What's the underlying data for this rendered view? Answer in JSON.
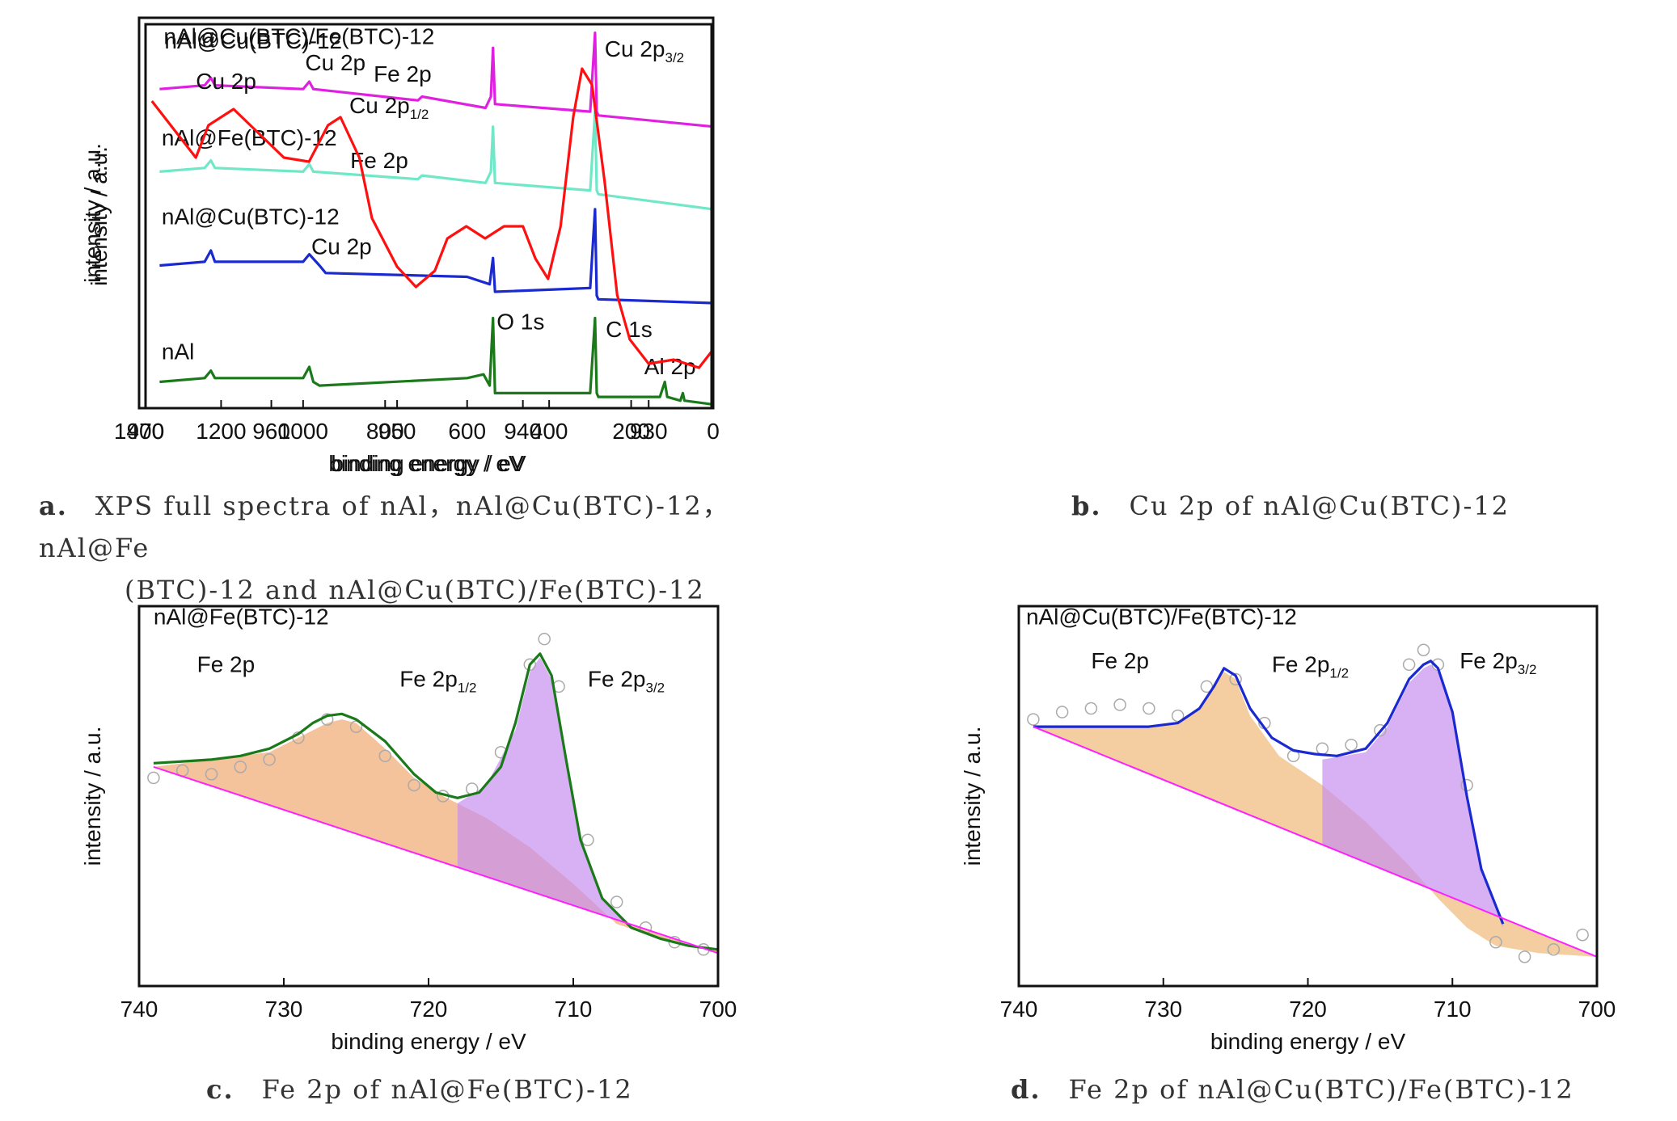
{
  "panels": {
    "a": {
      "letter": "a.",
      "caption_line1": "XPS full spectra of nAl，nAl@Cu(BTC)-12，nAl@Fe",
      "caption_line2": "(BTC)-12 and nAl@Cu(BTC)/Fe(BTC)-12"
    },
    "b": {
      "letter": "b.",
      "caption": "Cu 2p of nAl@Cu(BTC)-12"
    },
    "c": {
      "letter": "c.",
      "caption": "Fe 2p of nAl@Fe(BTC)-12"
    },
    "d": {
      "letter": "d.",
      "caption": "Fe 2p of nAl@Cu(BTC)/Fe(BTC)-12"
    }
  },
  "chart_data": [
    {
      "id": "a",
      "type": "line",
      "xlabel": "binding energy / eV",
      "ylabel": "intensity / a.u.",
      "xlim": [
        1400,
        0
      ],
      "xticks": [
        1400,
        1200,
        1000,
        800,
        600,
        400,
        200,
        0
      ],
      "y_ticks_shown": false,
      "series": [
        {
          "name": "nAl@Cu(BTC)/Fe(BTC)-12",
          "color": "#e020e0",
          "x": [
            1350,
            1240,
            1225,
            1215,
            1000,
            985,
            975,
            720,
            710,
            555,
            542,
            537,
            532,
            300,
            288,
            284,
            280,
            0
          ],
          "y": [
            0.85,
            0.86,
            0.88,
            0.86,
            0.85,
            0.87,
            0.85,
            0.82,
            0.83,
            0.8,
            0.83,
            0.96,
            0.81,
            0.79,
            1.0,
            0.79,
            0.78,
            0.75
          ]
        },
        {
          "name": "nAl@Fe(BTC)-12",
          "color": "#70e8c8",
          "x": [
            1350,
            1240,
            1225,
            1215,
            1000,
            985,
            975,
            720,
            710,
            555,
            542,
            537,
            532,
            300,
            288,
            284,
            280,
            0
          ],
          "y": [
            0.63,
            0.64,
            0.66,
            0.64,
            0.63,
            0.65,
            0.63,
            0.61,
            0.62,
            0.6,
            0.63,
            0.75,
            0.6,
            0.58,
            0.79,
            0.58,
            0.57,
            0.53
          ]
        },
        {
          "name": "nAl@Cu(BTC)-12",
          "color": "#1a2ad0",
          "x": [
            1350,
            1240,
            1225,
            1215,
            1000,
            985,
            960,
            945,
            600,
            545,
            537,
            532,
            300,
            288,
            284,
            280,
            0
          ],
          "y": [
            0.38,
            0.39,
            0.42,
            0.39,
            0.39,
            0.41,
            0.38,
            0.36,
            0.35,
            0.33,
            0.4,
            0.31,
            0.32,
            0.53,
            0.3,
            0.29,
            0.28
          ]
        },
        {
          "name": "nAl",
          "color": "#1a7a1a",
          "x": [
            1350,
            1240,
            1225,
            1215,
            1000,
            985,
            975,
            960,
            600,
            560,
            545,
            537,
            532,
            300,
            288,
            284,
            280,
            130,
            118,
            112,
            80,
            74,
            70,
            0
          ],
          "y": [
            0.07,
            0.08,
            0.1,
            0.08,
            0.08,
            0.11,
            0.07,
            0.06,
            0.08,
            0.09,
            0.06,
            0.24,
            0.04,
            0.04,
            0.24,
            0.04,
            0.03,
            0.03,
            0.07,
            0.03,
            0.02,
            0.04,
            0.02,
            0.01
          ]
        }
      ],
      "annotations": [
        {
          "text": "nAl@Cu(BTC)/Fe(BTC)-12",
          "x": 1340,
          "y": 0.97
        },
        {
          "text": "Cu 2p",
          "x": 995,
          "y": 0.9
        },
        {
          "text": "Fe 2p",
          "x": 828,
          "y": 0.87
        },
        {
          "text": "nAl@Fe(BTC)-12",
          "x": 1345,
          "y": 0.7
        },
        {
          "text": "Fe 2p",
          "x": 885,
          "y": 0.64
        },
        {
          "text": "nAl@Cu(BTC)-12",
          "x": 1345,
          "y": 0.49
        },
        {
          "text": "Cu 2p",
          "x": 980,
          "y": 0.41
        },
        {
          "text": "nAl",
          "x": 1345,
          "y": 0.13
        },
        {
          "text": "O 1s",
          "x": 528,
          "y": 0.21
        },
        {
          "text": "C 1s",
          "x": 262,
          "y": 0.19
        },
        {
          "text": "Al 2p",
          "x": 168,
          "y": 0.09
        }
      ]
    },
    {
      "id": "b",
      "type": "line",
      "xlabel": "binding energy / eV",
      "ylabel": "intensity / a.u.",
      "xlim": [
        970,
        925
      ],
      "xticks": [
        970,
        960,
        950,
        940,
        930
      ],
      "y_ticks_shown": false,
      "series": [
        {
          "name": "nAl@Cu(BTC)-12",
          "color": "#ff1010",
          "x": [
            969.5,
            968,
            966,
            965,
            963,
            961,
            959,
            957,
            955.5,
            954.5,
            953,
            952,
            950,
            948.5,
            947,
            946,
            944.5,
            943,
            941.5,
            940,
            939,
            938,
            937,
            936,
            935.3,
            934.5,
            933.5,
            932.5,
            931.5,
            930,
            928,
            926,
            925
          ],
          "y": [
            0.86,
            0.8,
            0.72,
            0.8,
            0.84,
            0.78,
            0.72,
            0.71,
            0.8,
            0.82,
            0.72,
            0.57,
            0.45,
            0.4,
            0.44,
            0.52,
            0.55,
            0.52,
            0.55,
            0.55,
            0.47,
            0.42,
            0.55,
            0.82,
            0.94,
            0.9,
            0.66,
            0.38,
            0.27,
            0.21,
            0.22,
            0.2,
            0.24
          ]
        }
      ],
      "annotations": [
        {
          "text": "nAl@Cu(BTC)-12",
          "x": 968.5,
          "y": 0.99
        },
        {
          "text": "Cu 2p",
          "x": 966,
          "y": 0.89
        },
        {
          "text": "Cu 2p",
          "sub": "1/2",
          "x": 953.8,
          "y": 0.83
        },
        {
          "text": "Cu 2p",
          "sub": "3/2",
          "x": 933.5,
          "y": 0.97
        }
      ]
    },
    {
      "id": "c",
      "type": "scatter",
      "xlabel": "binding energy / eV",
      "ylabel": "intensity / a.u.",
      "xlim": [
        740,
        700
      ],
      "xticks": [
        740,
        730,
        720,
        710,
        700
      ],
      "y_ticks_shown": false,
      "series": [
        {
          "name": "raw",
          "color": "#aaaaaa",
          "x": [
            739,
            737,
            735,
            733,
            731,
            729,
            727,
            725,
            723,
            721,
            719,
            717,
            715,
            713,
            712,
            711,
            709,
            707,
            705,
            703,
            701
          ],
          "y": [
            0.57,
            0.59,
            0.58,
            0.6,
            0.62,
            0.68,
            0.73,
            0.71,
            0.63,
            0.55,
            0.52,
            0.54,
            0.64,
            0.88,
            0.95,
            0.82,
            0.4,
            0.23,
            0.16,
            0.12,
            0.1
          ]
        },
        {
          "name": "fit",
          "color": "#1a7a1a",
          "x": [
            739,
            737,
            735,
            733,
            731,
            729,
            728,
            727,
            726,
            725,
            723,
            721,
            719.5,
            718,
            716.5,
            715,
            714,
            713,
            712.3,
            711.5,
            710.5,
            709.5,
            708,
            706,
            704,
            702,
            700
          ],
          "y": [
            0.61,
            0.615,
            0.62,
            0.63,
            0.65,
            0.69,
            0.72,
            0.74,
            0.745,
            0.73,
            0.67,
            0.58,
            0.53,
            0.515,
            0.53,
            0.6,
            0.72,
            0.88,
            0.91,
            0.85,
            0.62,
            0.4,
            0.24,
            0.16,
            0.13,
            0.11,
            0.1
          ]
        },
        {
          "name": "baseline",
          "color": "#ff20ff",
          "x": [
            739,
            700
          ],
          "y": [
            0.6,
            0.09
          ]
        },
        {
          "name": "Fe 2p1/2",
          "color": "#f0a870",
          "x": [
            739,
            731,
            729,
            727,
            726,
            725,
            723,
            721,
            719,
            716,
            713,
            710,
            707,
            704,
            700
          ],
          "y": [
            0.6,
            0.64,
            0.68,
            0.72,
            0.73,
            0.72,
            0.65,
            0.57,
            0.52,
            0.46,
            0.38,
            0.28,
            0.17,
            0.13,
            0.1
          ]
        },
        {
          "name": "Fe 2p3/2",
          "color": "#c890f0",
          "x": [
            718,
            716,
            714,
            713,
            712.3,
            711.5,
            710.5,
            709.5,
            708,
            706
          ],
          "y": [
            0.5,
            0.55,
            0.7,
            0.86,
            0.9,
            0.84,
            0.61,
            0.4,
            0.24,
            0.16
          ]
        }
      ],
      "annotations": [
        {
          "text": "nAl@Fe(BTC)-12",
          "x": 739,
          "y": 0.99
        },
        {
          "text": "Fe 2p",
          "x": 736,
          "y": 0.86
        },
        {
          "text": "Fe 2p",
          "sub": "1/2",
          "x": 722,
          "y": 0.82
        },
        {
          "text": "Fe 2p",
          "sub": "3/2",
          "x": 709,
          "y": 0.82
        }
      ]
    },
    {
      "id": "d",
      "type": "scatter",
      "xlabel": "binding energy / eV",
      "ylabel": "intensity / a.u.",
      "xlim": [
        740,
        700
      ],
      "xticks": [
        740,
        730,
        720,
        710,
        700
      ],
      "y_ticks_shown": false,
      "series": [
        {
          "name": "raw",
          "color": "#aaaaaa",
          "x": [
            739,
            737,
            735,
            733,
            731,
            729,
            727,
            725,
            723,
            721,
            719,
            717,
            715,
            713,
            712,
            711,
            709,
            707,
            705,
            703,
            701
          ],
          "y": [
            0.73,
            0.75,
            0.76,
            0.77,
            0.76,
            0.74,
            0.82,
            0.84,
            0.72,
            0.63,
            0.65,
            0.66,
            0.7,
            0.88,
            0.92,
            0.88,
            0.55,
            0.12,
            0.08,
            0.1,
            0.14
          ]
        },
        {
          "name": "fit",
          "color": "#1a2ad0",
          "x": [
            739,
            735,
            731,
            729,
            727.5,
            726.5,
            725.8,
            725,
            724,
            722.5,
            721,
            719.5,
            718,
            716,
            714.5,
            713,
            712,
            711.5,
            711,
            710,
            709,
            708,
            706.5
          ],
          "y": [
            0.71,
            0.71,
            0.71,
            0.72,
            0.76,
            0.82,
            0.87,
            0.85,
            0.76,
            0.68,
            0.645,
            0.635,
            0.63,
            0.65,
            0.72,
            0.84,
            0.88,
            0.89,
            0.87,
            0.75,
            0.52,
            0.32,
            0.17
          ]
        },
        {
          "name": "baseline",
          "color": "#ff20ff",
          "x": [
            739,
            700
          ],
          "y": [
            0.71,
            0.08
          ]
        },
        {
          "name": "Fe 2p1/2",
          "color": "#f0b878",
          "x": [
            739,
            731,
            729,
            727.5,
            726.5,
            725.8,
            725,
            724,
            722,
            719,
            716,
            713,
            711,
            709,
            707,
            704,
            700
          ],
          "y": [
            0.71,
            0.71,
            0.72,
            0.76,
            0.82,
            0.86,
            0.84,
            0.74,
            0.63,
            0.55,
            0.45,
            0.33,
            0.24,
            0.16,
            0.11,
            0.09,
            0.08
          ]
        },
        {
          "name": "Fe 2p3/2",
          "color": "#c890f0",
          "x": [
            719,
            716,
            714.5,
            713,
            712,
            711.5,
            711,
            710,
            709,
            708,
            706.5
          ],
          "y": [
            0.62,
            0.64,
            0.71,
            0.83,
            0.87,
            0.88,
            0.86,
            0.74,
            0.51,
            0.31,
            0.16
          ]
        }
      ],
      "annotations": [
        {
          "text": "nAl@Cu(BTC)/Fe(BTC)-12",
          "x": 739.5,
          "y": 0.99
        },
        {
          "text": "Fe 2p",
          "x": 735,
          "y": 0.87
        },
        {
          "text": "Fe 2p",
          "sub": "1/2",
          "x": 722.5,
          "y": 0.86
        },
        {
          "text": "Fe 2p",
          "sub": "3/2",
          "x": 709.5,
          "y": 0.87
        }
      ]
    }
  ]
}
